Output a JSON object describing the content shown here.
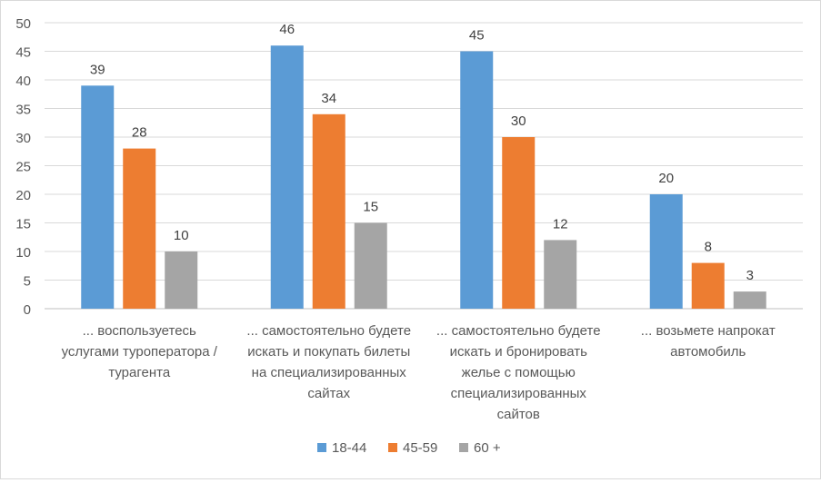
{
  "chart_data": {
    "type": "bar",
    "categories": [
      [
        "... воспользуетесь",
        "услугами туроператора /",
        "турагента"
      ],
      [
        "... самостоятельно будете",
        "искать и покупать билеты",
        "на специализированных",
        "сайтах"
      ],
      [
        "... самостоятельно будете",
        "искать и бронировать",
        "желье с помощью",
        "специализированных",
        "сайтов"
      ],
      [
        "... возьмете напрокат",
        "автомобиль"
      ]
    ],
    "series": [
      {
        "name": "18-44",
        "color": "#5b9bd5",
        "values": [
          39,
          46,
          45,
          20
        ]
      },
      {
        "name": "45-59",
        "color": "#ed7d31",
        "values": [
          28,
          34,
          30,
          8
        ]
      },
      {
        "name": "60 +",
        "color": "#a5a5a5",
        "values": [
          10,
          15,
          12,
          3
        ]
      }
    ],
    "y_ticks": [
      "0",
      "5",
      "10",
      "15",
      "20",
      "25",
      "30",
      "35",
      "40",
      "45",
      "50"
    ],
    "ylim": [
      0,
      50
    ],
    "grid": true,
    "legend_position": "bottom",
    "data_labels": true,
    "title": "",
    "xlabel": "",
    "ylabel": ""
  }
}
